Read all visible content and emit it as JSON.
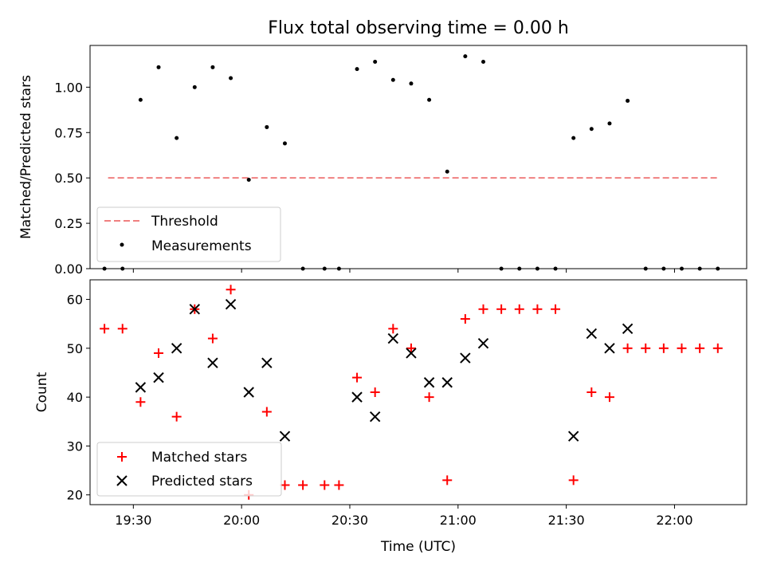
{
  "chart_data": [
    {
      "type": "scatter",
      "title": "Flux total observing time = 0.00 h",
      "xlabel": "",
      "ylabel": "Matched/Predicted stars",
      "ylim": [
        0,
        1.23
      ],
      "yticks": [
        "0.00",
        "0.25",
        "0.50",
        "0.75",
        "1.00"
      ],
      "xlim": [
        "19:18",
        "22:20"
      ],
      "threshold": {
        "name": "Threshold",
        "y": 0.5,
        "x_start": "19:23",
        "x_end": "22:12",
        "color": "#f08080"
      },
      "series": [
        {
          "name": "Measurements",
          "color": "#000000",
          "points": [
            [
              "19:22",
              0.0
            ],
            [
              "19:27",
              0.0
            ],
            [
              "19:32",
              0.93
            ],
            [
              "19:37",
              1.11
            ],
            [
              "19:42",
              0.72
            ],
            [
              "19:47",
              1.0
            ],
            [
              "19:52",
              1.11
            ],
            [
              "19:57",
              1.05
            ],
            [
              "20:02",
              0.49
            ],
            [
              "20:07",
              0.78
            ],
            [
              "20:12",
              0.69
            ],
            [
              "20:17",
              0.0
            ],
            [
              "20:23",
              0.0
            ],
            [
              "20:27",
              0.0
            ],
            [
              "20:32",
              1.1
            ],
            [
              "20:37",
              1.14
            ],
            [
              "20:42",
              1.04
            ],
            [
              "20:47",
              1.02
            ],
            [
              "20:52",
              0.93
            ],
            [
              "20:57",
              0.535
            ],
            [
              "21:02",
              1.17
            ],
            [
              "21:07",
              1.14
            ],
            [
              "21:12",
              0.0
            ],
            [
              "21:17",
              0.0
            ],
            [
              "21:22",
              0.0
            ],
            [
              "21:27",
              0.0
            ],
            [
              "21:32",
              0.72
            ],
            [
              "21:37",
              0.77
            ],
            [
              "21:42",
              0.8
            ],
            [
              "21:47",
              0.925
            ],
            [
              "21:52",
              0.0
            ],
            [
              "21:57",
              0.0
            ],
            [
              "22:02",
              0.0
            ],
            [
              "22:07",
              0.0
            ],
            [
              "22:12",
              0.0
            ]
          ]
        }
      ],
      "legend_position": "lower-left",
      "grid": false
    },
    {
      "type": "scatter",
      "title": "",
      "xlabel": "Time (UTC)",
      "ylabel": "Count",
      "ylim": [
        18,
        64
      ],
      "yticks": [
        "20",
        "30",
        "40",
        "50",
        "60"
      ],
      "xlim": [
        "19:18",
        "22:20"
      ],
      "xticks": [
        "19:30",
        "20:00",
        "20:30",
        "21:00",
        "21:30",
        "22:00"
      ],
      "series": [
        {
          "name": "Matched stars",
          "marker": "plus",
          "color": "#ff0000",
          "points": [
            [
              "19:22",
              54
            ],
            [
              "19:27",
              54
            ],
            [
              "19:32",
              39
            ],
            [
              "19:37",
              49
            ],
            [
              "19:42",
              36
            ],
            [
              "19:47",
              58
            ],
            [
              "19:52",
              52
            ],
            [
              "19:57",
              62
            ],
            [
              "20:02",
              20
            ],
            [
              "20:07",
              37
            ],
            [
              "20:12",
              22
            ],
            [
              "20:17",
              22
            ],
            [
              "20:23",
              22
            ],
            [
              "20:27",
              22
            ],
            [
              "20:32",
              44
            ],
            [
              "20:37",
              41
            ],
            [
              "20:42",
              54
            ],
            [
              "20:47",
              50
            ],
            [
              "20:52",
              40
            ],
            [
              "20:57",
              23
            ],
            [
              "21:02",
              56
            ],
            [
              "21:07",
              58
            ],
            [
              "21:12",
              58
            ],
            [
              "21:17",
              58
            ],
            [
              "21:22",
              58
            ],
            [
              "21:27",
              58
            ],
            [
              "21:32",
              23
            ],
            [
              "21:37",
              41
            ],
            [
              "21:42",
              40
            ],
            [
              "21:47",
              50
            ],
            [
              "21:52",
              50
            ],
            [
              "21:57",
              50
            ],
            [
              "22:02",
              50
            ],
            [
              "22:07",
              50
            ],
            [
              "22:12",
              50
            ]
          ]
        },
        {
          "name": "Predicted stars",
          "marker": "x",
          "color": "#000000",
          "points": [
            [
              "19:32",
              42
            ],
            [
              "19:37",
              44
            ],
            [
              "19:42",
              50
            ],
            [
              "19:47",
              58
            ],
            [
              "19:52",
              47
            ],
            [
              "19:57",
              59
            ],
            [
              "20:02",
              41
            ],
            [
              "20:07",
              47
            ],
            [
              "20:12",
              32
            ],
            [
              "20:32",
              40
            ],
            [
              "20:37",
              36
            ],
            [
              "20:42",
              52
            ],
            [
              "20:47",
              49
            ],
            [
              "20:52",
              43
            ],
            [
              "20:57",
              43
            ],
            [
              "21:02",
              48
            ],
            [
              "21:07",
              51
            ],
            [
              "21:32",
              32
            ],
            [
              "21:37",
              53
            ],
            [
              "21:42",
              50
            ],
            [
              "21:47",
              54
            ]
          ]
        }
      ],
      "legend_position": "lower-left",
      "grid": false
    }
  ]
}
